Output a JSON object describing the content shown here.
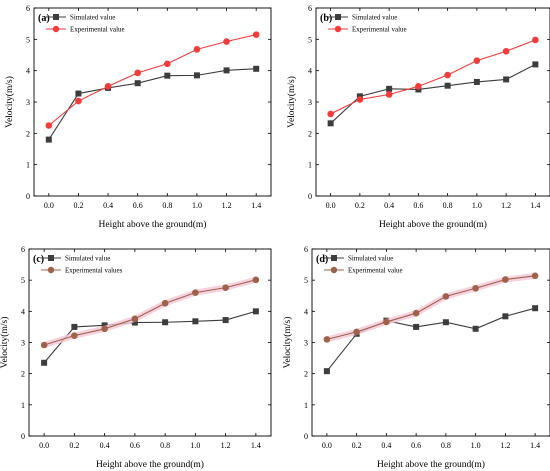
{
  "chart_data": [
    {
      "type": "line",
      "panel": "(a)",
      "xlabel": "Height above the ground(m)",
      "ylabel": "Velocity(m/s)",
      "xlim": [
        -0.1,
        1.5
      ],
      "ylim": [
        0,
        6
      ],
      "xticks": [
        "0.0",
        "0.2",
        "0.4",
        "0.6",
        "0.8",
        "1.0",
        "1.2",
        "1.4"
      ],
      "yticks": [
        "0",
        "1",
        "2",
        "3",
        "4",
        "5",
        "6"
      ],
      "x": [
        0.0,
        0.2,
        0.4,
        0.6,
        0.8,
        1.0,
        1.2,
        1.4
      ],
      "legend_position": "top-left",
      "series": [
        {
          "name": "Simulated value",
          "marker": "square",
          "color": "#3d3d3d",
          "values": [
            1.8,
            3.27,
            3.45,
            3.6,
            3.84,
            3.85,
            4.01,
            4.06
          ]
        },
        {
          "name": "Experimental value",
          "marker": "circle",
          "color": "#f23c3c",
          "values": [
            2.25,
            3.03,
            3.5,
            3.93,
            4.22,
            4.68,
            4.93,
            5.15
          ]
        }
      ]
    },
    {
      "type": "line",
      "panel": "(b)",
      "xlabel": "Height above the ground(m)",
      "ylabel": "Velocity(m/s)",
      "xlim": [
        -0.1,
        1.5
      ],
      "ylim": [
        0,
        6
      ],
      "xticks": [
        "0.0",
        "0.2",
        "0.4",
        "0.6",
        "0.8",
        "1.0",
        "1.2",
        "1.4"
      ],
      "yticks": [
        "0",
        "1",
        "2",
        "3",
        "4",
        "5",
        "6"
      ],
      "x": [
        0.0,
        0.2,
        0.4,
        0.6,
        0.8,
        1.0,
        1.2,
        1.4
      ],
      "legend_position": "top-left",
      "series": [
        {
          "name": "Simulated value",
          "marker": "square",
          "color": "#3d3d3d",
          "values": [
            2.32,
            3.18,
            3.42,
            3.4,
            3.52,
            3.64,
            3.72,
            4.2
          ]
        },
        {
          "name": "Experimental value",
          "marker": "circle",
          "color": "#f23c3c",
          "values": [
            2.62,
            3.08,
            3.24,
            3.5,
            3.86,
            4.32,
            4.62,
            4.98
          ]
        }
      ]
    },
    {
      "type": "line",
      "panel": "(c)",
      "xlabel": "Height above the ground(m)",
      "ylabel": "Velocity(m/s)",
      "xlim": [
        -0.1,
        1.5
      ],
      "ylim": [
        0,
        6
      ],
      "xticks": [
        "0.0",
        "0.2",
        "0.4",
        "0.6",
        "0.8",
        "1.0",
        "1.2",
        "1.4"
      ],
      "yticks": [
        "0",
        "1",
        "2",
        "3",
        "4",
        "5",
        "6"
      ],
      "x": [
        0.0,
        0.2,
        0.4,
        0.6,
        0.8,
        1.0,
        1.2,
        1.4
      ],
      "legend_position": "top-left",
      "series": [
        {
          "name": "Simulated value",
          "marker": "square",
          "color": "#3d3d3d",
          "values": [
            2.35,
            3.5,
            3.55,
            3.64,
            3.65,
            3.68,
            3.72,
            4.0
          ]
        },
        {
          "name": "Experimental values",
          "marker": "circle",
          "color": "#a0614b",
          "values": [
            2.92,
            3.22,
            3.44,
            3.76,
            4.26,
            4.6,
            4.76,
            5.01
          ]
        }
      ]
    },
    {
      "type": "line",
      "panel": "(d)",
      "xlabel": "Height above the ground(m)",
      "ylabel": "Velocity(m/s)",
      "xlim": [
        -0.1,
        1.5
      ],
      "ylim": [
        0,
        6
      ],
      "xticks": [
        "0.0",
        "0.2",
        "0.4",
        "0.6",
        "0.8",
        "1.0",
        "1.2",
        "1.4"
      ],
      "yticks": [
        "0",
        "1",
        "2",
        "3",
        "4",
        "5",
        "6"
      ],
      "x": [
        0.0,
        0.2,
        0.4,
        0.6,
        0.8,
        1.0,
        1.2,
        1.4
      ],
      "legend_position": "top-left",
      "series": [
        {
          "name": "Simulated value",
          "marker": "square",
          "color": "#3d3d3d",
          "values": [
            2.08,
            3.28,
            3.7,
            3.5,
            3.65,
            3.44,
            3.84,
            4.1
          ]
        },
        {
          "name": "Experimental value",
          "marker": "circle",
          "color": "#a0614b",
          "values": [
            3.1,
            3.34,
            3.66,
            3.94,
            4.48,
            4.74,
            5.02,
            5.14
          ]
        }
      ]
    }
  ]
}
